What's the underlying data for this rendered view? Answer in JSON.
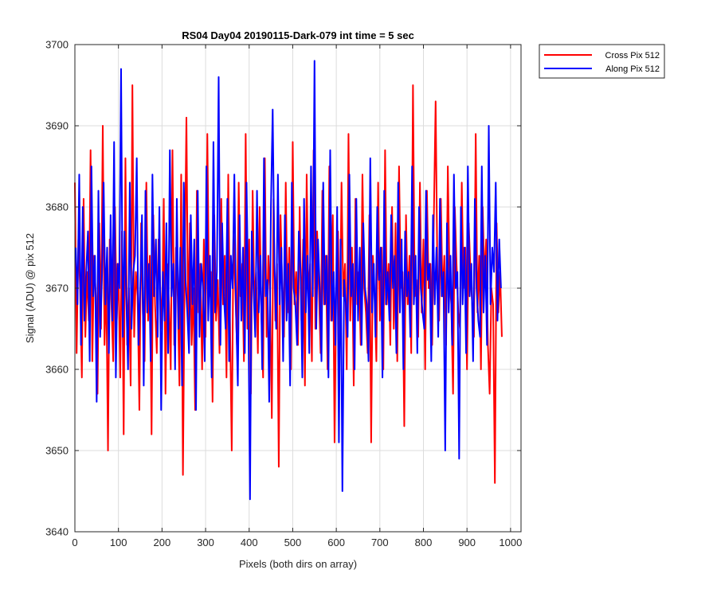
{
  "chart_data": {
    "type": "line",
    "title": "RS04 Day04 20190115-Dark-079 int time = 5 sec",
    "xlabel": "Pixels (both dirs on array)",
    "ylabel": "Signal (ADU) @ pix 512",
    "xlim": [
      0,
      1024
    ],
    "ylim": [
      3640,
      3700
    ],
    "xticks": [
      "0",
      "100",
      "200",
      "300",
      "400",
      "500",
      "600",
      "700",
      "800",
      "900",
      "1000"
    ],
    "xtick_values": [
      0,
      100,
      200,
      300,
      400,
      500,
      600,
      700,
      800,
      900,
      1000
    ],
    "yticks": [
      "3640",
      "3650",
      "3660",
      "3670",
      "3680",
      "3690",
      "3700"
    ],
    "ytick_values": [
      3640,
      3650,
      3660,
      3670,
      3680,
      3690,
      3700
    ],
    "grid": true,
    "legend_position": "outside-top-right",
    "sampling_note": "Values are estimated from the plot at reduced sampling (every 4th pixel); the original has one point per pixel.",
    "series": [
      {
        "name": "Cross Pix 512",
        "color": "#ff0000",
        "x_start": 0,
        "x_step": 4,
        "values": [
          3683,
          3662,
          3676,
          3670,
          3659,
          3681,
          3664,
          3672,
          3666,
          3687,
          3661,
          3674,
          3669,
          3657,
          3678,
          3665,
          3690,
          3663,
          3671,
          3650,
          3676,
          3668,
          3661,
          3680,
          3666,
          3673,
          3659,
          3677,
          3652,
          3686,
          3663,
          3670,
          3658,
          3695,
          3664,
          3672,
          3669,
          3655,
          3678,
          3667,
          3661,
          3683,
          3666,
          3674,
          3652,
          3679,
          3668,
          3662,
          3676,
          3670,
          3665,
          3681,
          3657,
          3673,
          3668,
          3660,
          3687,
          3663,
          3675,
          3669,
          3658,
          3684,
          3647,
          3672,
          3691,
          3665,
          3678,
          3663,
          3670,
          3655,
          3682,
          3667,
          3673,
          3660,
          3676,
          3664,
          3689,
          3669,
          3672,
          3656,
          3679,
          3666,
          3671,
          3662,
          3681,
          3668,
          3674,
          3659,
          3684,
          3666,
          3650,
          3677,
          3670,
          3663,
          3683,
          3669,
          3673,
          3661,
          3689,
          3665,
          3676,
          3657,
          3682,
          3668,
          3672,
          3662,
          3680,
          3667,
          3659,
          3686,
          3664,
          3674,
          3669,
          3654,
          3681,
          3666,
          3673,
          3648,
          3679,
          3670,
          3664,
          3683,
          3667,
          3675,
          3660,
          3688,
          3668,
          3672,
          3663,
          3680,
          3666,
          3676,
          3658,
          3684,
          3669,
          3673,
          3661,
          3687,
          3665,
          3677,
          3670,
          3662,
          3682,
          3668,
          3674,
          3660,
          3685,
          3666,
          3679,
          3651,
          3671,
          3677,
          3664,
          3683,
          3669,
          3673,
          3660,
          3689,
          3666,
          3675,
          3658,
          3681,
          3668,
          3672,
          3663,
          3684,
          3670,
          3667,
          3662,
          3679,
          3651,
          3674,
          3669,
          3661,
          3683,
          3666,
          3675,
          3660,
          3687,
          3668,
          3673,
          3663,
          3680,
          3665,
          3678,
          3661,
          3685,
          3670,
          3672,
          3653,
          3679,
          3668,
          3674,
          3662,
          3695,
          3669,
          3671,
          3664,
          3683,
          3667,
          3676,
          3660,
          3682,
          3670,
          3673,
          3663,
          3679,
          3693,
          3672,
          3666,
          3681,
          3669,
          3674,
          3663,
          3685,
          3671,
          3668,
          3657,
          3680,
          3673,
          3667,
          3665,
          3683,
          3670,
          3675,
          3660,
          3678,
          3672,
          3668,
          3664,
          3689,
          3667,
          3674,
          3660,
          3680,
          3671,
          3676,
          3663,
          3657,
          3670,
          3668,
          3646,
          3678,
          3667,
          3672,
          3664
        ]
      },
      {
        "name": "Along Pix 512",
        "color": "#0000ff",
        "x_start": 2,
        "x_step": 4,
        "values": [
          3675,
          3668,
          3684,
          3663,
          3680,
          3666,
          3672,
          3677,
          3661,
          3685,
          3669,
          3674,
          3656,
          3682,
          3664,
          3671,
          3683,
          3668,
          3675,
          3662,
          3679,
          3666,
          3688,
          3659,
          3673,
          3670,
          3697,
          3664,
          3677,
          3669,
          3660,
          3683,
          3665,
          3672,
          3674,
          3686,
          3663,
          3670,
          3679,
          3658,
          3682,
          3667,
          3673,
          3661,
          3684,
          3669,
          3676,
          3664,
          3680,
          3655,
          3672,
          3666,
          3678,
          3662,
          3687,
          3669,
          3673,
          3660,
          3681,
          3665,
          3675,
          3658,
          3683,
          3671,
          3667,
          3662,
          3679,
          3668,
          3676,
          3655,
          3682,
          3664,
          3673,
          3670,
          3661,
          3685,
          3666,
          3674,
          3659,
          3688,
          3667,
          3672,
          3696,
          3663,
          3678,
          3669,
          3665,
          3681,
          3661,
          3674,
          3670,
          3684,
          3667,
          3658,
          3679,
          3666,
          3675,
          3662,
          3683,
          3668,
          3644,
          3677,
          3670,
          3664,
          3682,
          3667,
          3674,
          3660,
          3686,
          3669,
          3671,
          3656,
          3680,
          3692,
          3673,
          3665,
          3684,
          3668,
          3675,
          3661,
          3679,
          3666,
          3673,
          3658,
          3683,
          3670,
          3668,
          3663,
          3677,
          3672,
          3659,
          3681,
          3667,
          3674,
          3662,
          3685,
          3669,
          3698,
          3665,
          3676,
          3670,
          3661,
          3683,
          3668,
          3674,
          3659,
          3687,
          3666,
          3672,
          3663,
          3680,
          3651,
          3676,
          3645,
          3671,
          3668,
          3664,
          3684,
          3669,
          3673,
          3660,
          3681,
          3666,
          3675,
          3663,
          3678,
          3670,
          3668,
          3661,
          3686,
          3667,
          3673,
          3664,
          3680,
          3671,
          3675,
          3659,
          3682,
          3668,
          3672,
          3666,
          3679,
          3670,
          3674,
          3662,
          3683,
          3667,
          3676,
          3660,
          3677,
          3669,
          3672,
          3664,
          3685,
          3668,
          3674,
          3662,
          3680,
          3670,
          3667,
          3665,
          3682,
          3671,
          3673,
          3661,
          3679,
          3668,
          3675,
          3664,
          3681,
          3669,
          3672,
          3650,
          3678,
          3667,
          3674,
          3663,
          3684,
          3670,
          3672,
          3649,
          3680,
          3668,
          3675,
          3662,
          3685,
          3669,
          3673,
          3661,
          3681,
          3670,
          3666,
          3664,
          3685,
          3667,
          3674,
          3663,
          3690,
          3668,
          3675,
          3672,
          3683,
          3666,
          3676,
          3670
        ]
      }
    ]
  }
}
